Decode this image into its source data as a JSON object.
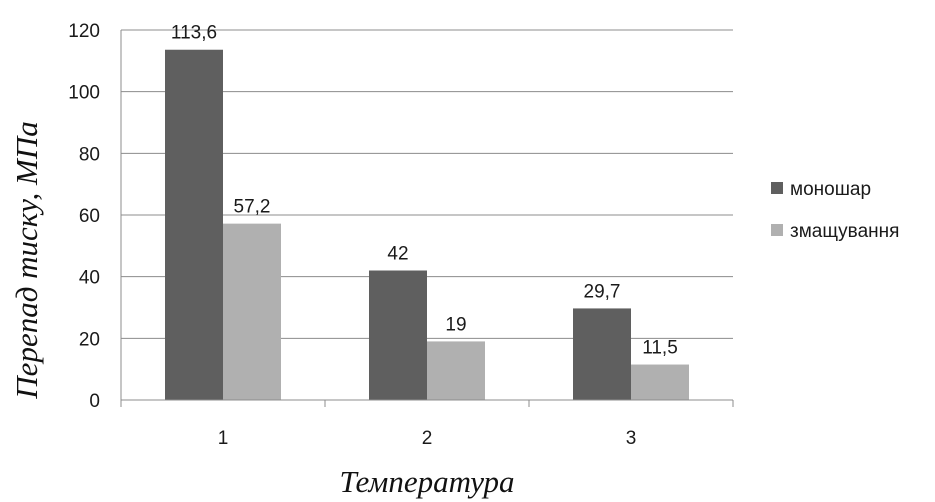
{
  "chart_data": {
    "type": "bar",
    "categories": [
      "1",
      "2",
      "3"
    ],
    "series": [
      {
        "name": "моношар",
        "values": [
          113.6,
          42,
          29.7
        ],
        "labels": [
          "113,6",
          "42",
          "29,7"
        ],
        "color": "#5f5f5f"
      },
      {
        "name": "змащування",
        "values": [
          57.2,
          19,
          11.5
        ],
        "labels": [
          "57,2",
          "19",
          "11,5"
        ],
        "color": "#b0b0b0"
      }
    ],
    "title": "",
    "xlabel": "Температура",
    "ylabel": "Перепад тиску, МПа",
    "ylim": [
      0,
      120
    ],
    "yticks": [
      0,
      20,
      40,
      60,
      80,
      100,
      120
    ],
    "grid": true,
    "legend_position": "right"
  }
}
